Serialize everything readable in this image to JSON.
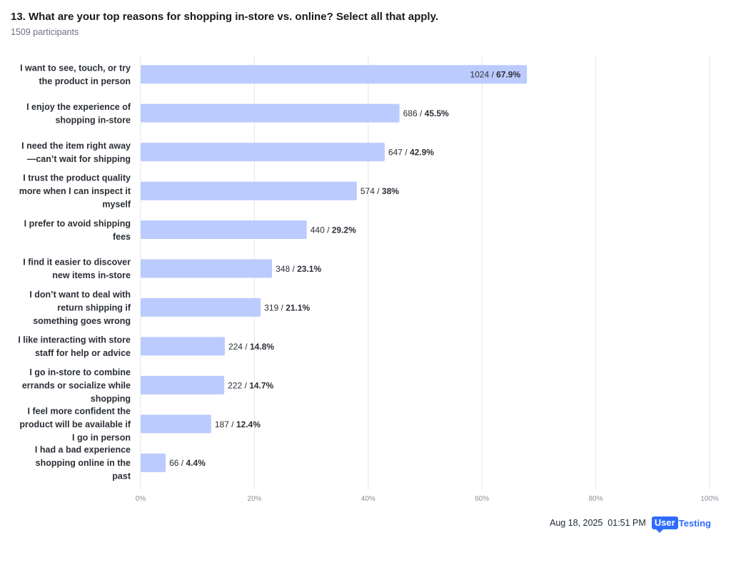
{
  "header": {
    "question": "13. What are your top reasons for shopping in-store vs. online? Select all that apply.",
    "participants": "1509 participants"
  },
  "chart_data": {
    "type": "bar",
    "orientation": "horizontal",
    "categories": [
      [
        "I want to see, touch, or try",
        "the product in person"
      ],
      [
        "I enjoy the experience of",
        "shopping in-store"
      ],
      [
        "I need the item right away",
        "—can’t wait for shipping"
      ],
      [
        "I trust the product quality",
        "more when I can inspect it",
        "myself"
      ],
      [
        "I prefer to avoid shipping",
        "fees"
      ],
      [
        "I find it easier to discover",
        "new items in-store"
      ],
      [
        "I don’t want to deal with",
        "return shipping if",
        "something goes wrong"
      ],
      [
        "I like interacting with store",
        "staff for help or advice"
      ],
      [
        "I go in-store to combine",
        "errands or socialize while",
        "shopping"
      ],
      [
        "I feel more confident the",
        "product will be available if",
        "I go in person"
      ],
      [
        "I had a bad experience",
        "shopping online in the",
        "past"
      ]
    ],
    "counts": [
      1024,
      686,
      647,
      574,
      440,
      348,
      319,
      224,
      222,
      187,
      66
    ],
    "values": [
      67.9,
      45.5,
      42.9,
      38,
      29.2,
      23.1,
      21.1,
      14.8,
      14.7,
      12.4,
      4.4
    ],
    "value_labels": [
      "67.9%",
      "45.5%",
      "42.9%",
      "38%",
      "29.2%",
      "23.1%",
      "21.1%",
      "14.8%",
      "14.7%",
      "12.4%",
      "4.4%"
    ],
    "xlim": [
      0,
      100
    ],
    "xticks": [
      "0%",
      "20%",
      "40%",
      "60%",
      "80%",
      "100%"
    ],
    "grid": true,
    "colors": {
      "bar": "#bccbfe",
      "grid": "#e3e5e8"
    }
  },
  "footer": {
    "timestamp": "Aug 18, 2025  01:51 PM",
    "logo_user": "User",
    "logo_testing": "Testing"
  }
}
